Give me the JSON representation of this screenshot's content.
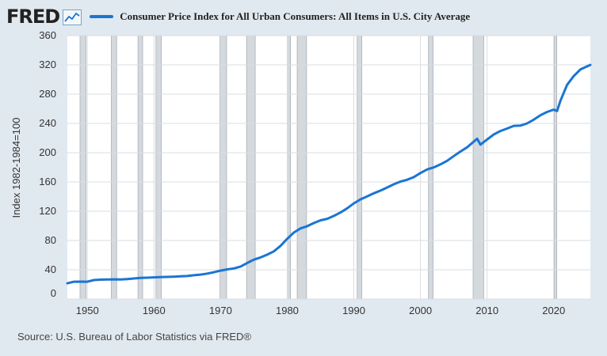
{
  "header": {
    "logo_text": "FRED",
    "logo_icon": "trend-line-icon",
    "legend_label": "Consumer Price Index for All Urban Consumers: All Items in U.S. City Average"
  },
  "source": "Source: U.S. Bureau of Labor Statistics via FRED®",
  "colors": {
    "series": "#1a75d4",
    "recession": "#d4d9de",
    "background": "#e1e9f0",
    "plot_bg": "#ffffff",
    "grid": "#d9dde2"
  },
  "chart_data": {
    "type": "line",
    "title": "",
    "xlabel": "",
    "ylabel": "Index 1982-1984=100",
    "xlim": [
      1947,
      2025.5
    ],
    "ylim": [
      0,
      360
    ],
    "x_ticks": [
      1950,
      1960,
      1970,
      1980,
      1990,
      2000,
      2010,
      2020
    ],
    "y_ticks": [
      0,
      40,
      80,
      120,
      160,
      200,
      240,
      280,
      320,
      360
    ],
    "grid": true,
    "recessions": [
      [
        1948.9,
        1949.8
      ],
      [
        1953.6,
        1954.4
      ],
      [
        1957.6,
        1958.3
      ],
      [
        1960.3,
        1961.1
      ],
      [
        1969.9,
        1970.9
      ],
      [
        1973.9,
        1975.2
      ],
      [
        1980.0,
        1980.5
      ],
      [
        1981.5,
        1982.9
      ],
      [
        1990.5,
        1991.2
      ],
      [
        2001.2,
        2001.9
      ],
      [
        2007.9,
        2009.5
      ],
      [
        2020.1,
        2020.4
      ]
    ],
    "series": [
      {
        "name": "Consumer Price Index for All Urban Consumers: All Items in U.S. City Average",
        "x": [
          1947,
          1948,
          1949,
          1950,
          1951,
          1952,
          1953,
          1954,
          1955,
          1956,
          1957,
          1958,
          1959,
          1960,
          1961,
          1962,
          1963,
          1964,
          1965,
          1966,
          1967,
          1968,
          1969,
          1970,
          1971,
          1972,
          1973,
          1974,
          1975,
          1976,
          1977,
          1978,
          1979,
          1980,
          1981,
          1982,
          1983,
          1984,
          1985,
          1986,
          1987,
          1988,
          1989,
          1990,
          1991,
          1992,
          1993,
          1994,
          1995,
          1996,
          1997,
          1998,
          1999,
          2000,
          2001,
          2002,
          2003,
          2004,
          2005,
          2006,
          2007,
          2008.5,
          2009,
          2010,
          2011,
          2012,
          2013,
          2014,
          2015,
          2016,
          2017,
          2018,
          2019,
          2020,
          2020.5,
          2021,
          2022,
          2023,
          2024,
          2025.5
        ],
        "values": [
          21.5,
          23.7,
          23.8,
          23.7,
          25.9,
          26.5,
          26.7,
          26.9,
          26.8,
          27.2,
          28.1,
          28.9,
          29.2,
          29.6,
          29.9,
          30.3,
          30.6,
          31.0,
          31.5,
          32.5,
          33.4,
          34.8,
          36.7,
          38.8,
          40.5,
          41.8,
          44.4,
          49.3,
          53.8,
          56.9,
          60.6,
          65.2,
          72.6,
          82.4,
          90.9,
          96.5,
          99.6,
          103.9,
          107.6,
          109.6,
          113.6,
          118.3,
          124.0,
          130.7,
          136.2,
          140.3,
          144.5,
          148.2,
          152.4,
          156.9,
          160.5,
          163.0,
          166.6,
          172.2,
          177.1,
          179.9,
          184.0,
          188.9,
          195.3,
          201.6,
          207.3,
          219.0,
          211.0,
          218.1,
          224.9,
          229.6,
          233.0,
          236.7,
          237.0,
          240.0,
          245.1,
          251.1,
          255.7,
          258.8,
          257.0,
          270.9,
          292.7,
          304.7,
          313.7,
          320.0
        ]
      }
    ]
  }
}
